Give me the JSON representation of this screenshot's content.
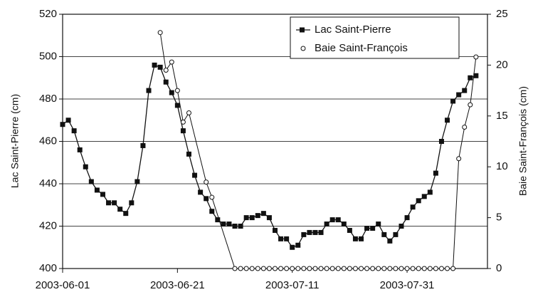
{
  "chart_data": {
    "type": "line",
    "y_label": "Lac Saint-Pierre (cm)",
    "y2_label": "Baie Saint-François (cm)",
    "x": [
      "2003-06-01",
      "2003-06-02",
      "2003-06-03",
      "2003-06-04",
      "2003-06-05",
      "2003-06-06",
      "2003-06-07",
      "2003-06-08",
      "2003-06-09",
      "2003-06-10",
      "2003-06-11",
      "2003-06-12",
      "2003-06-13",
      "2003-06-14",
      "2003-06-15",
      "2003-06-16",
      "2003-06-17",
      "2003-06-18",
      "2003-06-19",
      "2003-06-20",
      "2003-06-21",
      "2003-06-22",
      "2003-06-23",
      "2003-06-24",
      "2003-06-25",
      "2003-06-26",
      "2003-06-27",
      "2003-06-28",
      "2003-06-29",
      "2003-06-30",
      "2003-07-01",
      "2003-07-02",
      "2003-07-03",
      "2003-07-04",
      "2003-07-05",
      "2003-07-06",
      "2003-07-07",
      "2003-07-08",
      "2003-07-09",
      "2003-07-10",
      "2003-07-11",
      "2003-07-12",
      "2003-07-13",
      "2003-07-14",
      "2003-07-15",
      "2003-07-16",
      "2003-07-17",
      "2003-07-18",
      "2003-07-19",
      "2003-07-20",
      "2003-07-21",
      "2003-07-22",
      "2003-07-23",
      "2003-07-24",
      "2003-07-25",
      "2003-07-26",
      "2003-07-27",
      "2003-07-28",
      "2003-07-29",
      "2003-07-30",
      "2003-07-31",
      "2003-08-01",
      "2003-08-02",
      "2003-08-03",
      "2003-08-04",
      "2003-08-05",
      "2003-08-06",
      "2003-08-07",
      "2003-08-08",
      "2003-08-09",
      "2003-08-10",
      "2003-08-11",
      "2003-08-12"
    ],
    "series": [
      {
        "name": "Lac Saint-Pierre",
        "color": "#111111",
        "values": [
          468,
          470,
          465,
          456,
          448,
          441,
          437,
          435,
          431,
          431,
          428,
          426,
          431,
          441,
          458,
          484,
          496,
          495,
          488,
          483,
          477,
          465,
          454,
          444,
          436,
          433,
          427,
          423,
          421,
          421,
          420,
          420,
          424,
          424,
          425,
          426,
          424,
          418,
          414,
          414,
          410,
          411,
          416,
          417,
          417,
          417,
          421,
          423,
          423,
          421,
          418,
          414,
          414,
          419,
          419,
          421,
          416,
          413,
          416,
          420,
          424,
          429,
          432,
          434,
          436,
          445,
          460,
          470,
          479,
          482,
          484,
          490,
          491
        ]
      },
      {
        "name": "Baie Saint-François",
        "color": "#111111",
        "axis": "y2",
        "x": [
          "2003-06-18",
          "2003-06-19",
          "2003-06-20",
          "2003-06-21",
          "2003-06-22",
          "2003-06-23",
          "2003-06-26",
          "2003-06-27",
          "2003-07-01",
          "2003-07-02",
          "2003-07-03",
          "2003-07-04",
          "2003-07-05",
          "2003-07-06",
          "2003-07-07",
          "2003-07-08",
          "2003-07-09",
          "2003-07-10",
          "2003-07-11",
          "2003-07-12",
          "2003-07-13",
          "2003-07-14",
          "2003-07-15",
          "2003-07-16",
          "2003-07-17",
          "2003-07-18",
          "2003-07-19",
          "2003-07-20",
          "2003-07-21",
          "2003-07-22",
          "2003-07-23",
          "2003-07-24",
          "2003-07-25",
          "2003-07-26",
          "2003-07-27",
          "2003-07-28",
          "2003-07-29",
          "2003-07-30",
          "2003-07-31",
          "2003-08-01",
          "2003-08-02",
          "2003-08-03",
          "2003-08-04",
          "2003-08-05",
          "2003-08-06",
          "2003-08-07",
          "2003-08-08",
          "2003-08-09",
          "2003-08-10",
          "2003-08-11",
          "2003-08-12"
        ],
        "values": [
          23.2,
          19.5,
          20.3,
          17.5,
          14.4,
          15.3,
          8.5,
          7.0,
          0,
          0,
          0,
          0,
          0,
          0,
          0,
          0,
          0,
          0,
          0,
          0,
          0,
          0,
          0,
          0,
          0,
          0,
          0,
          0,
          0,
          0,
          0,
          0,
          0,
          0,
          0,
          0,
          0,
          0,
          0,
          0,
          0,
          0,
          0,
          0,
          0,
          0,
          0,
          10.8,
          13.9,
          16.1,
          20.8
        ]
      }
    ],
    "xlim": [
      "2003-06-01",
      "2003-08-14"
    ],
    "xticks": [
      "2003-06-01",
      "2003-06-21",
      "2003-07-11",
      "2003-07-31"
    ],
    "ylim": [
      400,
      520
    ],
    "yticks": [
      400,
      420,
      440,
      460,
      480,
      500,
      520
    ],
    "y2lim": [
      0,
      25
    ],
    "y2ticks": [
      0,
      5,
      10,
      15,
      20,
      25
    ],
    "grid": true,
    "legend": "upper right"
  }
}
